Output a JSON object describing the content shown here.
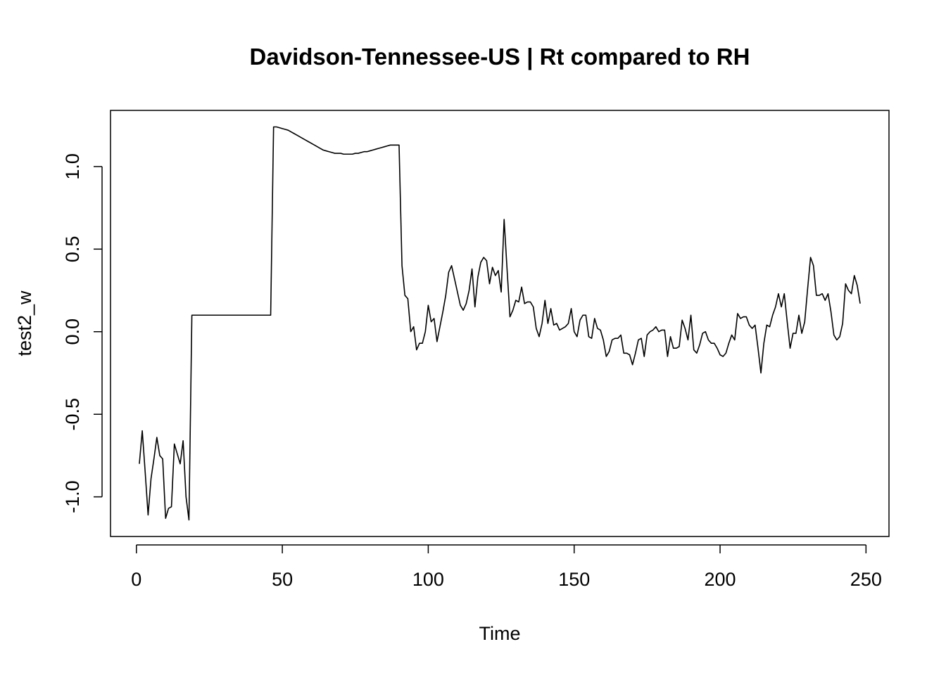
{
  "chart_data": {
    "type": "line",
    "title": "Davidson-Tennessee-US | Rt compared to RH",
    "xlabel": "Time",
    "ylabel": "test2_w",
    "color": "#000000",
    "x": [
      1,
      2,
      3,
      4,
      5,
      6,
      7,
      8,
      9,
      10,
      11,
      12,
      13,
      14,
      15,
      16,
      17,
      18,
      19,
      20,
      21,
      22,
      23,
      24,
      25,
      26,
      27,
      28,
      29,
      30,
      31,
      32,
      33,
      34,
      35,
      36,
      37,
      38,
      39,
      40,
      41,
      42,
      43,
      44,
      45,
      46,
      47,
      48,
      49,
      50,
      51,
      52,
      53,
      54,
      55,
      56,
      57,
      58,
      59,
      60,
      61,
      62,
      63,
      64,
      65,
      66,
      67,
      68,
      69,
      70,
      71,
      72,
      73,
      74,
      75,
      76,
      77,
      78,
      79,
      80,
      81,
      82,
      83,
      84,
      85,
      86,
      87,
      88,
      89,
      90,
      91,
      92,
      93,
      94,
      95,
      96,
      97,
      98,
      99,
      100,
      101,
      102,
      103,
      104,
      105,
      106,
      107,
      108,
      109,
      110,
      111,
      112,
      113,
      114,
      115,
      116,
      117,
      118,
      119,
      120,
      121,
      122,
      123,
      124,
      125,
      126,
      127,
      128,
      129,
      130,
      131,
      132,
      133,
      134,
      135,
      136,
      137,
      138,
      139,
      140,
      141,
      142,
      143,
      144,
      145,
      146,
      147,
      148,
      149,
      150,
      151,
      152,
      153,
      154,
      155,
      156,
      157,
      158,
      159,
      160,
      161,
      162,
      163,
      164,
      165,
      166,
      167,
      168,
      169,
      170,
      171,
      172,
      173,
      174,
      175,
      176,
      177,
      178,
      179,
      180,
      181,
      182,
      183,
      184,
      185,
      186,
      187,
      188,
      189,
      190,
      191,
      192,
      193,
      194,
      195,
      196,
      197,
      198,
      199,
      200,
      201,
      202,
      203,
      204,
      205,
      206,
      207,
      208,
      209,
      210,
      211,
      212,
      213,
      214,
      215,
      216,
      217,
      218,
      219,
      220,
      221,
      222,
      223,
      224,
      225,
      226,
      227,
      228,
      229,
      230,
      231,
      232,
      233,
      234,
      235,
      236,
      237,
      238,
      239,
      240,
      241,
      242,
      243,
      244,
      245,
      246,
      247,
      248
    ],
    "values": [
      -0.8,
      -0.6,
      -0.85,
      -1.11,
      -0.89,
      -0.77,
      -0.64,
      -0.75,
      -0.77,
      -1.13,
      -1.07,
      -1.06,
      -0.68,
      -0.74,
      -0.8,
      -0.66,
      -1.0,
      -1.14,
      0.1,
      0.1,
      0.1,
      0.1,
      0.1,
      0.1,
      0.1,
      0.1,
      0.1,
      0.1,
      0.1,
      0.1,
      0.1,
      0.1,
      0.1,
      0.1,
      0.1,
      0.1,
      0.1,
      0.1,
      0.1,
      0.1,
      0.1,
      0.1,
      0.1,
      0.1,
      0.1,
      0.1,
      1.24,
      1.24,
      1.235,
      1.23,
      1.225,
      1.22,
      1.21,
      1.2,
      1.19,
      1.18,
      1.17,
      1.16,
      1.15,
      1.14,
      1.13,
      1.12,
      1.11,
      1.1,
      1.095,
      1.09,
      1.085,
      1.08,
      1.08,
      1.08,
      1.075,
      1.075,
      1.075,
      1.075,
      1.08,
      1.08,
      1.085,
      1.09,
      1.09,
      1.095,
      1.1,
      1.105,
      1.11,
      1.115,
      1.12,
      1.125,
      1.13,
      1.13,
      1.13,
      1.13,
      0.4,
      0.22,
      0.2,
      0.0,
      0.03,
      -0.11,
      -0.07,
      -0.07,
      0.0,
      0.16,
      0.06,
      0.08,
      -0.06,
      0.03,
      0.12,
      0.22,
      0.36,
      0.4,
      0.32,
      0.24,
      0.16,
      0.13,
      0.17,
      0.25,
      0.38,
      0.15,
      0.33,
      0.42,
      0.45,
      0.43,
      0.29,
      0.39,
      0.34,
      0.37,
      0.24,
      0.68,
      0.38,
      0.09,
      0.13,
      0.19,
      0.18,
      0.27,
      0.17,
      0.18,
      0.18,
      0.15,
      0.02,
      -0.03,
      0.05,
      0.19,
      0.05,
      0.14,
      0.04,
      0.05,
      0.01,
      0.02,
      0.03,
      0.05,
      0.14,
      0.0,
      -0.03,
      0.07,
      0.1,
      0.1,
      -0.03,
      -0.04,
      0.08,
      0.02,
      0.01,
      -0.05,
      -0.15,
      -0.12,
      -0.05,
      -0.04,
      -0.04,
      -0.02,
      -0.13,
      -0.13,
      -0.14,
      -0.2,
      -0.13,
      -0.05,
      -0.04,
      -0.15,
      -0.02,
      0.0,
      0.01,
      0.03,
      0.0,
      0.01,
      0.01,
      -0.15,
      -0.03,
      -0.1,
      -0.1,
      -0.09,
      0.07,
      0.02,
      -0.05,
      0.1,
      -0.11,
      -0.13,
      -0.08,
      -0.01,
      0.0,
      -0.05,
      -0.07,
      -0.07,
      -0.1,
      -0.14,
      -0.15,
      -0.13,
      -0.07,
      -0.02,
      -0.05,
      0.11,
      0.08,
      0.09,
      0.09,
      0.04,
      0.02,
      0.04,
      -0.1,
      -0.25,
      -0.07,
      0.04,
      0.03,
      0.1,
      0.15,
      0.23,
      0.15,
      0.23,
      0.06,
      -0.1,
      -0.01,
      -0.01,
      0.1,
      -0.01,
      0.06,
      0.26,
      0.45,
      0.4,
      0.22,
      0.22,
      0.23,
      0.19,
      0.23,
      0.12,
      -0.02,
      -0.05,
      -0.03,
      0.05,
      0.29,
      0.25,
      0.23,
      0.34,
      0.28,
      0.17
    ],
    "xlim": [
      -8.88,
      257.88
    ],
    "xticks": [
      0,
      50,
      100,
      150,
      200,
      250
    ],
    "ylim": [
      -1.24,
      1.34
    ],
    "yticks": [
      {
        "value": -1,
        "label": "-1.0"
      },
      -0.5,
      {
        "value": 0,
        "label": "0.0"
      },
      0.5,
      {
        "value": 1,
        "label": "1.0"
      }
    ],
    "grid": false
  }
}
